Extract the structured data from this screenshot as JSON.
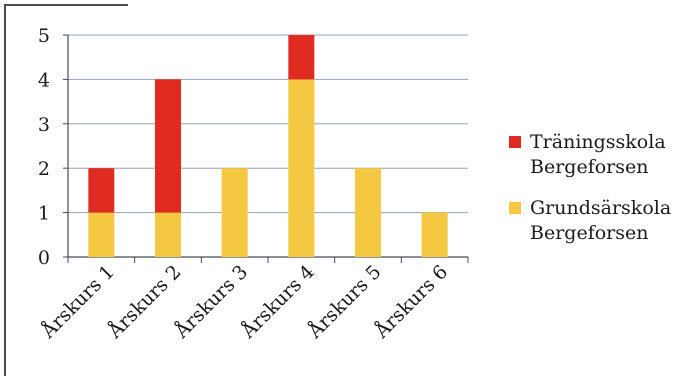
{
  "chart_data": {
    "type": "bar",
    "stacked": true,
    "categories": [
      "Årskurs 1",
      "Årskurs 2",
      "Årskurs 3",
      "Årskurs 4",
      "Årskurs 5",
      "Årskurs 6"
    ],
    "series": [
      {
        "name": "Grundsärskola Bergeforsen",
        "color": "#f5c842",
        "values": [
          1,
          1,
          2,
          4,
          2,
          1
        ]
      },
      {
        "name": "Träningsskola Bergeforsen",
        "color": "#e02b20",
        "values": [
          1,
          3,
          0,
          1,
          0,
          0
        ]
      }
    ],
    "legend_order": [
      1,
      0
    ],
    "legend_lines": [
      [
        "Träningsskola",
        "Bergeforsen"
      ],
      [
        "Grundsärskola",
        "Bergeforsen"
      ]
    ],
    "yticks": [
      "0",
      "1",
      "2",
      "3",
      "4",
      "5"
    ],
    "ylim": [
      0,
      5
    ],
    "grid": true,
    "legend_position": "right",
    "title": "",
    "xlabel": "",
    "ylabel": ""
  }
}
